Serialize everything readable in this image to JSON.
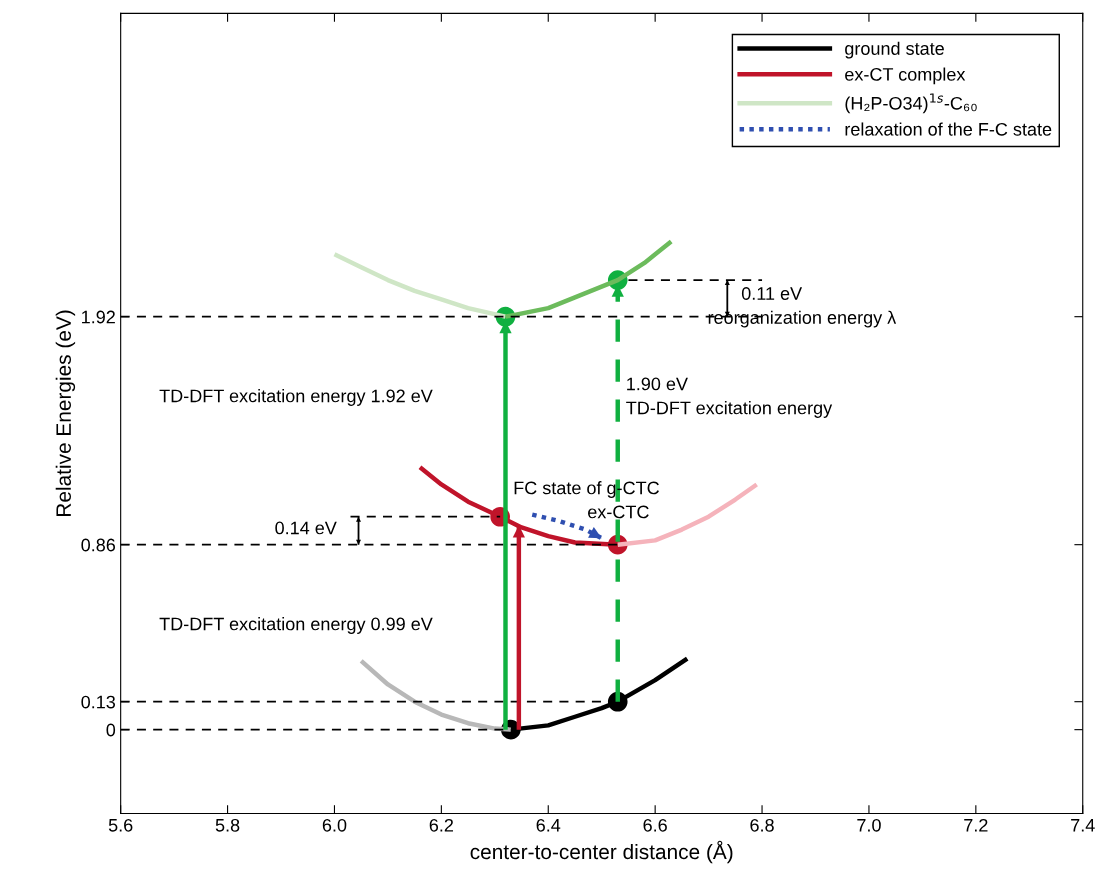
{
  "chart_data": {
    "type": "line",
    "xlabel": "center-to-center distance (Å)",
    "ylabel": "Relative Energies (eV)",
    "xlim": [
      5.6,
      7.4
    ],
    "ylim": [
      -0.39,
      3.33
    ],
    "xticks": [
      5.6,
      5.8,
      {
        "value": 6.0,
        "label": "6.0"
      },
      6.2,
      6.4,
      6.6,
      6.8,
      {
        "value": 7.0,
        "label": "7.0"
      },
      7.2,
      7.4
    ],
    "yticks": [
      0,
      0.13,
      0.86,
      1.92
    ],
    "grid": false,
    "legend": "top right",
    "series": [
      {
        "name": "ground state",
        "color": "#000000",
        "line_style": "solid",
        "x": [
          6.33,
          6.4,
          6.45,
          6.5,
          6.53,
          6.6,
          6.66
        ],
        "values": [
          0,
          0.02,
          0.06,
          0.1,
          0.13,
          0.23,
          0.33
        ]
      },
      {
        "name": "ex-CT complex",
        "color": "#c0142a",
        "line_style": "solid",
        "x": [
          6.16,
          6.2,
          6.25,
          6.31,
          6.35,
          6.4,
          6.45,
          6.53
        ],
        "values": [
          1.22,
          1.14,
          1.06,
          0.99,
          0.94,
          0.9,
          0.87,
          0.86
        ]
      },
      {
        "name": "(H₂P-O34)$^{1s}$-C₆₀",
        "color": "#cfe6c6",
        "line_style": "solid",
        "x": [
          6.0,
          6.05,
          6.1,
          6.15,
          6.2,
          6.25,
          6.32
        ],
        "values": [
          2.21,
          2.15,
          2.09,
          2.04,
          2.0,
          1.96,
          1.92
        ]
      },
      {
        "name": "relaxation of the F-C state",
        "color": "#2f4fb0",
        "line_style": "dotted",
        "x": [
          6.37,
          6.42,
          6.47,
          6.5
        ],
        "values": [
          1.0,
          0.97,
          0.93,
          0.89
        ]
      },
      {
        "color": "#b8b8b8",
        "line_style": "solid",
        "x": [
          6.05,
          6.1,
          6.15,
          6.2,
          6.25,
          6.3,
          6.33
        ],
        "values": [
          0.32,
          0.21,
          0.13,
          0.07,
          0.03,
          0.005,
          0
        ]
      },
      {
        "color": "#f5b3bb",
        "line_style": "solid",
        "x": [
          6.53,
          6.6,
          6.65,
          6.7,
          6.75,
          6.79
        ],
        "values": [
          0.86,
          0.88,
          0.93,
          0.99,
          1.07,
          1.14
        ]
      },
      {
        "color": "#6cbb5c",
        "line_style": "solid",
        "x": [
          6.32,
          6.4,
          6.45,
          6.53,
          6.58,
          6.63
        ],
        "values": [
          1.92,
          1.96,
          2.01,
          2.09,
          2.17,
          2.27
        ]
      },
      {
        "color": "#000000",
        "line_style": "dashed",
        "x": [
          5.6,
          6.33
        ],
        "values": [
          0,
          0
        ]
      },
      {
        "color": "#000000",
        "line_style": "dashed",
        "x": [
          5.6,
          6.53
        ],
        "values": [
          0.13,
          0.13
        ]
      },
      {
        "color": "#000000",
        "line_style": "dashed",
        "x": [
          5.6,
          6.53
        ],
        "values": [
          0.86,
          0.86
        ]
      },
      {
        "color": "#000000",
        "line_style": "dashed",
        "x": [
          6.03,
          6.31
        ],
        "values": [
          0.99,
          0.99
        ]
      },
      {
        "color": "#000000",
        "line_style": "dashed",
        "x": [
          5.6,
          6.8
        ],
        "values": [
          1.92,
          1.92
        ]
      },
      {
        "color": "#000000",
        "line_style": "dashed",
        "x": [
          6.55,
          6.8
        ],
        "values": [
          2.09,
          2.09
        ]
      },
      {
        "color": "#10b040",
        "line_style": "solid",
        "x": [
          6.32,
          6.32
        ],
        "values": [
          0,
          1.9
        ]
      },
      {
        "color": "#c0142a",
        "line_style": "solid",
        "x": [
          6.345,
          6.345
        ],
        "values": [
          0,
          0.95
        ]
      },
      {
        "color": "#10b040",
        "line_style": "dashed",
        "x": [
          6.53,
          6.53
        ],
        "values": [
          0.13,
          2.07
        ]
      },
      {
        "color": "#000000",
        "line_style": "solid",
        "marker": "triangle",
        "x": [
          6.045,
          6.045
        ],
        "values": [
          0.86,
          0.99
        ]
      },
      {
        "color": "#000000",
        "line_style": "solid",
        "marker": "triangle",
        "x": [
          6.735,
          6.735
        ],
        "values": [
          1.92,
          2.09
        ]
      },
      {
        "type": "scatter",
        "color": "#000000",
        "marker": "circle",
        "x": [
          6.33,
          6.53
        ],
        "values": [
          0,
          0.13
        ]
      },
      {
        "type": "scatter",
        "color": "#c0142a",
        "marker": "circle",
        "x": [
          6.31,
          6.53
        ],
        "values": [
          0.99,
          0.86
        ]
      },
      {
        "type": "scatter",
        "color": "#10b040",
        "marker": "circle",
        "x": [
          6.32,
          6.53
        ],
        "values": [
          1.92,
          2.09
        ]
      }
    ],
    "annotations": [
      "TD-DFT excitation energy 1.92 eV",
      "1.90 eV",
      "TD-DFT excitation energy",
      "FC state of g-CTC",
      "ex-CTC",
      "0.14 eV",
      "TD-DFT excitation energy 0.99 eV",
      "0.11 eV",
      "reorganization energy λ"
    ]
  }
}
